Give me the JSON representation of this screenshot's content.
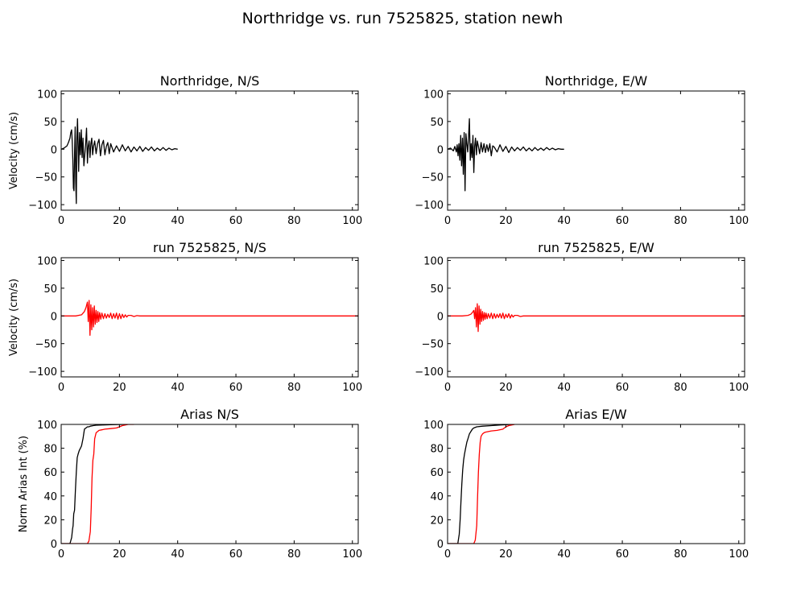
{
  "figure_title": "Northridge vs. run 7525825, station newh",
  "colors": {
    "observed": "#000000",
    "simulated": "#ff0000",
    "background": "#ffffff"
  },
  "chart_data": [
    {
      "type": "line",
      "title": "Northridge, N/S",
      "ylabel": "Velocity (cm/s)",
      "xlabel": "",
      "xlim": [
        0,
        102
      ],
      "ylim": [
        -110,
        105
      ],
      "xticks": [
        0,
        20,
        40,
        60,
        80,
        100
      ],
      "yticks": [
        -100,
        -50,
        0,
        50,
        100
      ],
      "grid": false,
      "series": [
        {
          "color": "#000000",
          "x": [
            0,
            1,
            2,
            2.5,
            3,
            3.3,
            3.6,
            3.8,
            4.0,
            4.2,
            4.4,
            4.6,
            4.8,
            5.0,
            5.2,
            5.4,
            5.6,
            5.8,
            6.0,
            6.3,
            6.6,
            6.9,
            7.2,
            7.5,
            7.8,
            8.1,
            8.4,
            8.7,
            9.0,
            9.3,
            9.6,
            9.9,
            10.2,
            10.5,
            10.8,
            11.1,
            11.5,
            12.0,
            12.5,
            13.0,
            13.5,
            14.0,
            14.5,
            15.0,
            15.5,
            16.0,
            16.5,
            17.0,
            18.0,
            19.0,
            20.0,
            21.0,
            22.0,
            23.0,
            24.0,
            25.0,
            26.0,
            27.0,
            28.0,
            29.0,
            30.0,
            31.0,
            32.0,
            33.0,
            34.0,
            35.0,
            36.0,
            37.0,
            38.0,
            39.0,
            40.0
          ],
          "y": [
            0,
            2,
            6,
            12,
            20,
            30,
            35,
            15,
            -20,
            -70,
            -75,
            -10,
            40,
            -60,
            -98,
            20,
            55,
            10,
            -40,
            30,
            -10,
            35,
            -15,
            20,
            -30,
            -10,
            10,
            38,
            -25,
            5,
            15,
            -15,
            10,
            20,
            -10,
            5,
            15,
            -8,
            10,
            18,
            -12,
            8,
            16,
            -10,
            5,
            12,
            -8,
            10,
            -5,
            6,
            -4,
            8,
            -3,
            5,
            -5,
            4,
            -3,
            5,
            -4,
            3,
            -2,
            4,
            -3,
            2,
            -2,
            3,
            -2,
            2,
            -1,
            1,
            0
          ]
        }
      ]
    },
    {
      "type": "line",
      "title": "Northridge, E/W",
      "ylabel": "",
      "xlabel": "",
      "xlim": [
        0,
        102
      ],
      "ylim": [
        -110,
        105
      ],
      "xticks": [
        0,
        20,
        40,
        60,
        80,
        100
      ],
      "yticks": [
        -100,
        -50,
        0,
        50,
        100
      ],
      "grid": false,
      "series": [
        {
          "color": "#000000",
          "x": [
            0,
            1,
            2,
            2.5,
            3,
            3.3,
            3.6,
            3.9,
            4.2,
            4.5,
            4.8,
            5.1,
            5.4,
            5.7,
            6.0,
            6.3,
            6.6,
            6.9,
            7.2,
            7.5,
            7.8,
            8.1,
            8.4,
            8.7,
            9.0,
            9.3,
            9.6,
            9.9,
            10.2,
            10.6,
            11.0,
            11.5,
            12.0,
            12.5,
            13.0,
            13.5,
            14.0,
            14.5,
            15.0,
            15.5,
            16.0,
            17.0,
            18.0,
            19.0,
            20.0,
            21.0,
            22.0,
            23.0,
            24.0,
            25.0,
            26.0,
            27.0,
            28.0,
            29.0,
            30.0,
            31.0,
            32.0,
            33.0,
            34.0,
            35.0,
            36.0,
            37.0,
            38.0,
            39.0,
            40.0
          ],
          "y": [
            0,
            2,
            -3,
            5,
            -5,
            8,
            -12,
            10,
            -20,
            25,
            -30,
            20,
            -45,
            30,
            -75,
            28,
            10,
            -5,
            20,
            55,
            -20,
            10,
            -15,
            25,
            -42,
            5,
            20,
            -10,
            15,
            5,
            -8,
            12,
            -5,
            10,
            -6,
            8,
            -4,
            10,
            -12,
            6,
            4,
            -5,
            8,
            -4,
            5,
            -6,
            4,
            -3,
            3,
            -2,
            4,
            -3,
            2,
            -3,
            3,
            -2,
            2,
            -2,
            3,
            -1,
            2,
            -1,
            1,
            0,
            0
          ]
        }
      ]
    },
    {
      "type": "line",
      "title": "run 7525825, N/S",
      "ylabel": "Velocity (cm/s)",
      "xlabel": "",
      "xlim": [
        0,
        102
      ],
      "ylim": [
        -110,
        105
      ],
      "xticks": [
        0,
        20,
        40,
        60,
        80,
        100
      ],
      "yticks": [
        -100,
        -50,
        0,
        50,
        100
      ],
      "grid": false,
      "series": [
        {
          "color": "#ff0000",
          "x": [
            0,
            5,
            7,
            8,
            8.5,
            9.0,
            9.3,
            9.6,
            9.9,
            10.2,
            10.5,
            10.8,
            11.1,
            11.4,
            11.7,
            12.0,
            12.3,
            12.6,
            12.9,
            13.2,
            13.6,
            14.0,
            14.5,
            15.0,
            15.5,
            16.0,
            16.5,
            17.0,
            17.5,
            18.0,
            18.5,
            19.0,
            19.5,
            20.0,
            20.5,
            21.0,
            21.5,
            22.0,
            22.5,
            23.0,
            24.0,
            25.0,
            26.0,
            27.0,
            30.0,
            102.0
          ],
          "y": [
            0,
            0,
            2,
            8,
            15,
            25,
            -10,
            28,
            -35,
            20,
            -25,
            15,
            -20,
            18,
            -15,
            10,
            -12,
            8,
            -10,
            6,
            -6,
            5,
            -5,
            4,
            -4,
            3,
            -3,
            5,
            -5,
            4,
            -4,
            5,
            -6,
            4,
            -5,
            3,
            -3,
            2,
            -2,
            1,
            1,
            -1,
            0.5,
            0,
            0,
            0
          ]
        }
      ]
    },
    {
      "type": "line",
      "title": "run 7525825, E/W",
      "ylabel": "",
      "xlabel": "",
      "xlim": [
        0,
        102
      ],
      "ylim": [
        -110,
        105
      ],
      "xticks": [
        0,
        20,
        40,
        60,
        80,
        100
      ],
      "yticks": [
        -100,
        -50,
        0,
        50,
        100
      ],
      "grid": false,
      "series": [
        {
          "color": "#ff0000",
          "x": [
            0,
            5,
            7,
            8,
            8.5,
            9.0,
            9.3,
            9.6,
            9.9,
            10.2,
            10.5,
            10.8,
            11.1,
            11.4,
            11.7,
            12.0,
            12.3,
            12.6,
            12.9,
            13.2,
            13.6,
            14.0,
            14.5,
            15.0,
            15.5,
            16.0,
            16.5,
            17.0,
            17.5,
            18.0,
            18.5,
            19.0,
            19.5,
            20.0,
            20.5,
            21.0,
            21.5,
            22.0,
            22.5,
            23.0,
            24.0,
            25.0,
            26.0,
            30.0,
            102.0
          ],
          "y": [
            0,
            0,
            1,
            3,
            6,
            10,
            -5,
            15,
            -20,
            22,
            -28,
            18,
            -15,
            12,
            -10,
            8,
            -8,
            6,
            -6,
            5,
            -5,
            4,
            -4,
            5,
            -5,
            4,
            -4,
            3,
            -3,
            4,
            -4,
            5,
            -5,
            3,
            -3,
            4,
            -4,
            2,
            -2,
            1,
            1,
            -1,
            0,
            0,
            0
          ]
        }
      ]
    },
    {
      "type": "line",
      "title": "Arias N/S",
      "ylabel": "Norm Arias Int (%)",
      "xlabel": "",
      "xlim": [
        0,
        102
      ],
      "ylim": [
        0,
        100
      ],
      "xticks": [
        0,
        20,
        40,
        60,
        80,
        100
      ],
      "yticks": [
        0,
        20,
        40,
        60,
        80,
        100
      ],
      "grid": false,
      "series": [
        {
          "color": "#000000",
          "x": [
            0,
            3,
            3.6,
            3.9,
            4.1,
            4.3,
            4.6,
            4.9,
            5.2,
            5.5,
            5.8,
            6.2,
            6.6,
            7.0,
            7.5,
            8.0,
            8.5,
            9.0,
            9.5,
            10.0,
            11.0,
            12.0,
            14.0,
            17.0,
            20.0,
            22.0
          ],
          "y": [
            0,
            0,
            5,
            12,
            15,
            25,
            28,
            45,
            60,
            72,
            75,
            78,
            80,
            82,
            88,
            96,
            97,
            98,
            98,
            98.5,
            99,
            99.3,
            99.5,
            99.7,
            99.9,
            100
          ]
        },
        {
          "color": "#ff0000",
          "x": [
            0,
            9,
            9.5,
            10,
            10.3,
            10.6,
            10.9,
            11.2,
            11.5,
            12.0,
            12.5,
            13.0,
            14.0,
            15.0,
            17.0,
            19.0,
            20.0,
            21.0,
            22.0,
            23.0,
            25.0
          ],
          "y": [
            0,
            0,
            2,
            10,
            30,
            55,
            70,
            75,
            88,
            93,
            94,
            95,
            95.5,
            96,
            96.5,
            97,
            98,
            99,
            99.5,
            100,
            100
          ]
        }
      ]
    },
    {
      "type": "line",
      "title": "Arias E/W",
      "ylabel": "",
      "xlabel": "",
      "xlim": [
        0,
        102
      ],
      "ylim": [
        0,
        100
      ],
      "xticks": [
        0,
        20,
        40,
        60,
        80,
        100
      ],
      "yticks": [
        0,
        20,
        40,
        60,
        80,
        100
      ],
      "grid": false,
      "series": [
        {
          "color": "#000000",
          "x": [
            0,
            3.5,
            4.0,
            4.3,
            4.6,
            4.9,
            5.2,
            5.5,
            5.8,
            6.2,
            6.6,
            7.0,
            7.5,
            8.0,
            8.5,
            9.0,
            10.0,
            12.0,
            15.0,
            18.0,
            20.0,
            22.0
          ],
          "y": [
            0,
            0,
            8,
            20,
            35,
            50,
            62,
            70,
            75,
            80,
            85,
            88,
            92,
            94,
            96,
            97,
            98,
            98.5,
            99,
            99.5,
            99.8,
            100
          ]
        },
        {
          "color": "#ff0000",
          "x": [
            0,
            9,
            9.5,
            10,
            10.3,
            10.6,
            10.9,
            11.2,
            11.5,
            12.0,
            12.5,
            13.0,
            14.0,
            15.0,
            17.0,
            19.0,
            20.0,
            21.0,
            22.0,
            23.0
          ],
          "y": [
            0,
            0,
            3,
            15,
            40,
            60,
            75,
            85,
            90,
            92,
            93,
            93.5,
            94,
            94.5,
            95,
            96,
            98,
            99,
            99.5,
            100
          ]
        }
      ]
    }
  ]
}
